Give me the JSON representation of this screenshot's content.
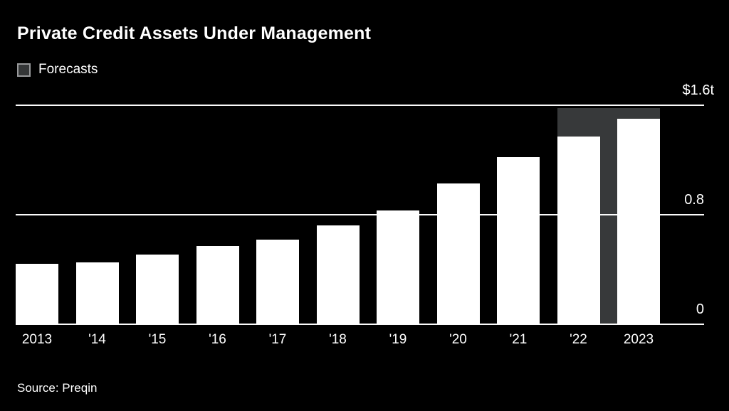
{
  "title": "Private Credit Assets Under Management",
  "legend": {
    "label": "Forecasts"
  },
  "source": "Source: Preqin",
  "colors": {
    "background": "#000000",
    "bar": "#ffffff",
    "forecast": "#37393a",
    "gridline": "#fbfbfb",
    "text": "#ffffff"
  },
  "chart_data": {
    "type": "bar",
    "title": "Private Credit Assets Under Management",
    "unit": "trillions of US dollars",
    "categories": [
      "2013",
      "'14",
      "'15",
      "'16",
      "'17",
      "'18",
      "'19",
      "'20",
      "'21",
      "'22",
      "2023"
    ],
    "values": [
      0.44,
      0.45,
      0.51,
      0.57,
      0.62,
      0.72,
      0.83,
      1.03,
      1.22,
      1.37,
      1.5
    ],
    "forecast_values": [
      null,
      null,
      null,
      null,
      null,
      null,
      null,
      null,
      null,
      1.58,
      1.58
    ],
    "xlabel": "",
    "ylabel": "",
    "ylim": [
      0,
      1.6
    ],
    "yticks": [
      {
        "value": 0,
        "label": "0"
      },
      {
        "value": 0.8,
        "label": "0.8"
      },
      {
        "value": 1.6,
        "label": "$1.6t"
      }
    ],
    "grid": true,
    "legend_entries": [
      "Forecasts"
    ],
    "legend_position": "top-left"
  }
}
